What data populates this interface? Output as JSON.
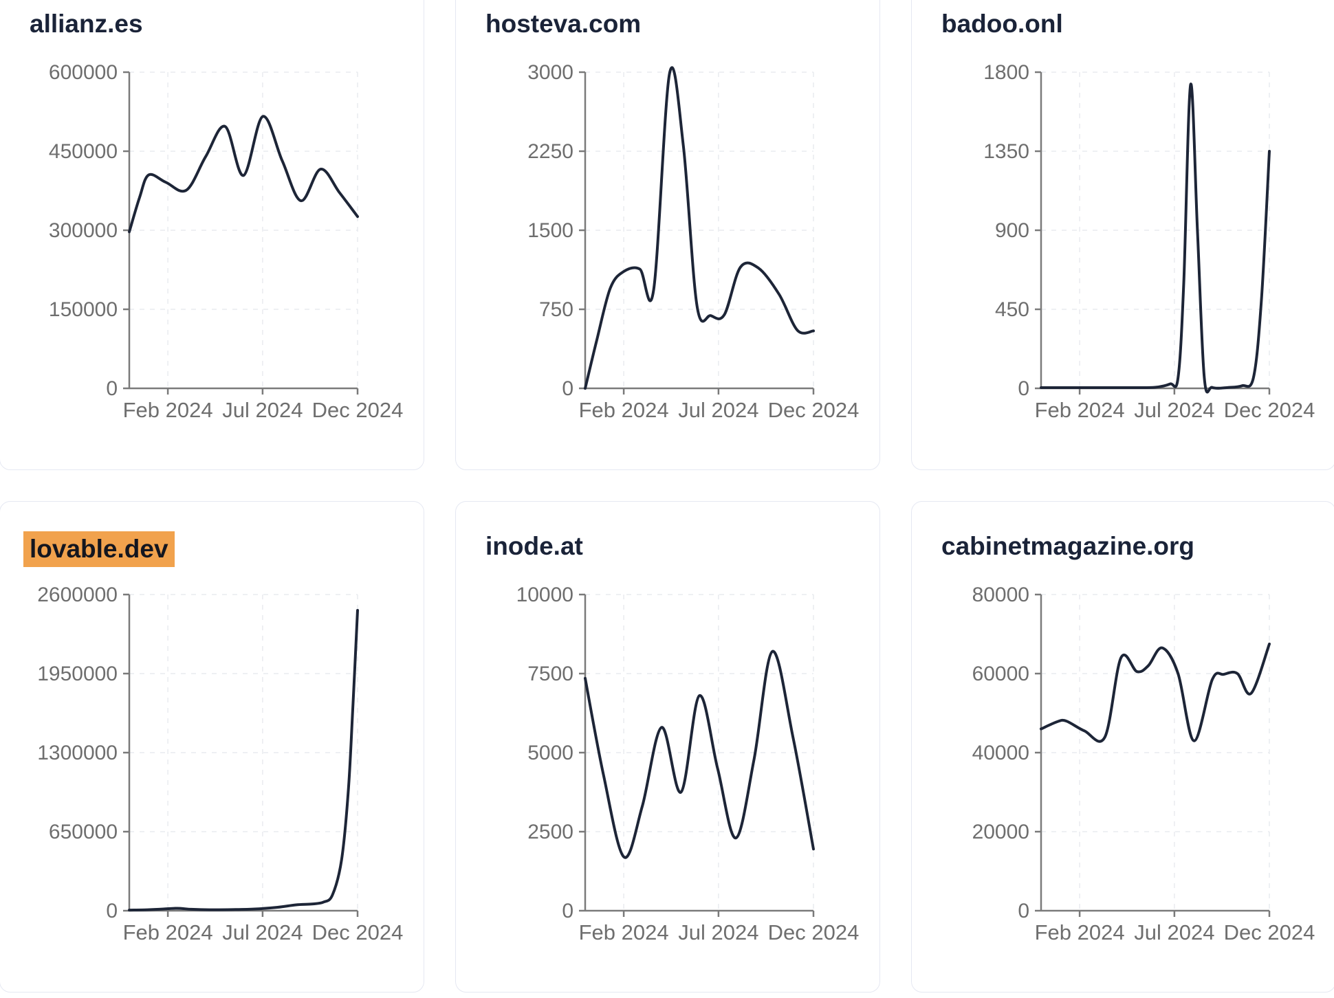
{
  "colors": {
    "line": "#1d2537",
    "axis": "#7a7a7a",
    "tick_label": "#6e6e6e",
    "grid": "#e9ebef",
    "card_border": "#e5e8f2",
    "card_bg": "#ffffff",
    "page_bg": "#ffffff",
    "title": "#1a2338",
    "highlight_bg": "#f1a24d"
  },
  "x_axis": {
    "ticks": [
      {
        "label": "Feb 2024",
        "t": 0.169
      },
      {
        "label": "Jul 2024",
        "t": 0.584
      },
      {
        "label": "Dec 2024",
        "t": 1.0
      }
    ]
  },
  "chart_data": [
    {
      "type": "line",
      "title": "allianz.es",
      "highlighted": false,
      "y_max": 600000,
      "y_tick_labels": [
        "600000",
        "450000",
        "300000",
        "150000",
        "0"
      ],
      "x_tick_labels": [
        "Feb 2024",
        "Jul 2024",
        "Dec 2024"
      ],
      "points": [
        [
          0,
          297000
        ],
        [
          0.045,
          362000
        ],
        [
          0.085,
          405000
        ],
        [
          0.16,
          391000
        ],
        [
          0.25,
          376000
        ],
        [
          0.335,
          440000
        ],
        [
          0.42,
          497000
        ],
        [
          0.5,
          404000
        ],
        [
          0.585,
          516000
        ],
        [
          0.67,
          432000
        ],
        [
          0.752,
          356000
        ],
        [
          0.838,
          416000
        ],
        [
          0.92,
          372000
        ],
        [
          1,
          326000
        ]
      ]
    },
    {
      "type": "line",
      "title": "hosteva.com",
      "highlighted": false,
      "y_max": 3000,
      "y_tick_labels": [
        "3000",
        "2250",
        "1500",
        "750",
        "0"
      ],
      "x_tick_labels": [
        "Feb 2024",
        "Jul 2024",
        "Dec 2024"
      ],
      "points": [
        [
          0,
          0
        ],
        [
          0.05,
          450
        ],
        [
          0.11,
          950
        ],
        [
          0.17,
          1110
        ],
        [
          0.24,
          1130
        ],
        [
          0.3,
          935
        ],
        [
          0.37,
          2990
        ],
        [
          0.43,
          2300
        ],
        [
          0.49,
          780
        ],
        [
          0.55,
          690
        ],
        [
          0.61,
          700
        ],
        [
          0.68,
          1150
        ],
        [
          0.76,
          1140
        ],
        [
          0.85,
          890
        ],
        [
          0.93,
          550
        ],
        [
          1,
          545
        ]
      ]
    },
    {
      "type": "line",
      "title": "badoo.onl",
      "highlighted": false,
      "y_max": 1800,
      "y_tick_labels": [
        "1800",
        "1350",
        "900",
        "450",
        "0"
      ],
      "x_tick_labels": [
        "Feb 2024",
        "Jul 2024",
        "Dec 2024"
      ],
      "points": [
        [
          0,
          4
        ],
        [
          0.1,
          4
        ],
        [
          0.2,
          4
        ],
        [
          0.3,
          4
        ],
        [
          0.4,
          4
        ],
        [
          0.5,
          6
        ],
        [
          0.565,
          25
        ],
        [
          0.6,
          60
        ],
        [
          0.625,
          600
        ],
        [
          0.655,
          1730
        ],
        [
          0.685,
          900
        ],
        [
          0.715,
          60
        ],
        [
          0.75,
          5
        ],
        [
          0.82,
          5
        ],
        [
          0.88,
          15
        ],
        [
          0.93,
          60
        ],
        [
          0.965,
          500
        ],
        [
          1,
          1350
        ]
      ]
    },
    {
      "type": "line",
      "title": "lovable.dev",
      "highlighted": true,
      "y_max": 2600000,
      "y_tick_labels": [
        "2600000",
        "1950000",
        "1300000",
        "650000",
        "0"
      ],
      "x_tick_labels": [
        "Feb 2024",
        "Jul 2024",
        "Dec 2024"
      ],
      "points": [
        [
          0,
          5000
        ],
        [
          0.08,
          8000
        ],
        [
          0.15,
          14000
        ],
        [
          0.21,
          20000
        ],
        [
          0.27,
          12000
        ],
        [
          0.35,
          8000
        ],
        [
          0.45,
          9000
        ],
        [
          0.55,
          14000
        ],
        [
          0.65,
          28000
        ],
        [
          0.73,
          48000
        ],
        [
          0.8,
          55000
        ],
        [
          0.85,
          70000
        ],
        [
          0.89,
          130000
        ],
        [
          0.93,
          420000
        ],
        [
          0.96,
          1000000
        ],
        [
          0.98,
          1700000
        ],
        [
          1,
          2470000
        ]
      ]
    },
    {
      "type": "line",
      "title": "inode.at",
      "highlighted": false,
      "y_max": 10000,
      "y_tick_labels": [
        "10000",
        "7500",
        "5000",
        "2500",
        "0"
      ],
      "x_tick_labels": [
        "Feb 2024",
        "Jul 2024",
        "Dec 2024"
      ],
      "points": [
        [
          0,
          7350
        ],
        [
          0.08,
          4300
        ],
        [
          0.17,
          1700
        ],
        [
          0.25,
          3300
        ],
        [
          0.335,
          5800
        ],
        [
          0.42,
          3750
        ],
        [
          0.5,
          6800
        ],
        [
          0.58,
          4500
        ],
        [
          0.66,
          2300
        ],
        [
          0.74,
          4800
        ],
        [
          0.82,
          8200
        ],
        [
          0.91,
          5500
        ],
        [
          1,
          1950
        ]
      ]
    },
    {
      "type": "line",
      "title": "cabinetmagazine.org",
      "highlighted": false,
      "y_max": 80000,
      "y_tick_labels": [
        "80000",
        "60000",
        "40000",
        "20000",
        "0"
      ],
      "x_tick_labels": [
        "Feb 2024",
        "Jul 2024",
        "Dec 2024"
      ],
      "points": [
        [
          0,
          46000
        ],
        [
          0.07,
          47800
        ],
        [
          0.11,
          48000
        ],
        [
          0.19,
          45500
        ],
        [
          0.28,
          44000
        ],
        [
          0.35,
          64000
        ],
        [
          0.42,
          60500
        ],
        [
          0.47,
          62000
        ],
        [
          0.53,
          66500
        ],
        [
          0.6,
          60000
        ],
        [
          0.67,
          43000
        ],
        [
          0.75,
          58500
        ],
        [
          0.8,
          59800
        ],
        [
          0.86,
          60000
        ],
        [
          0.92,
          55000
        ],
        [
          1,
          67500
        ]
      ]
    }
  ]
}
